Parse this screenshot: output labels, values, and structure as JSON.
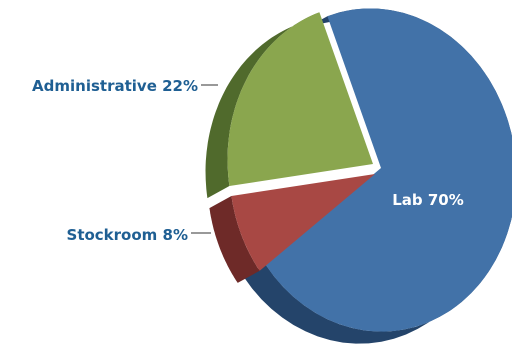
{
  "chart_data": {
    "type": "pie",
    "style": "3d-exploded-perspective",
    "categories": [
      "Lab",
      "Stockroom",
      "Administrative"
    ],
    "values": [
      70,
      8,
      22
    ],
    "labels": [
      "Lab 70%",
      "Stockroom 8%",
      "Administrative 22%"
    ],
    "label_placement": [
      "inside",
      "outside-left",
      "outside-left"
    ],
    "colors": {
      "lab_top": "#4272a8",
      "lab_side": "#24446a",
      "stockroom_top": "#a84844",
      "stockroom_side": "#6e2a28",
      "administrative_top": "#8aa64e",
      "administrative_side": "#506a2c",
      "outside_label": "#1f5f93",
      "inside_label": "#ffffff"
    },
    "title": "",
    "legend": "none"
  }
}
